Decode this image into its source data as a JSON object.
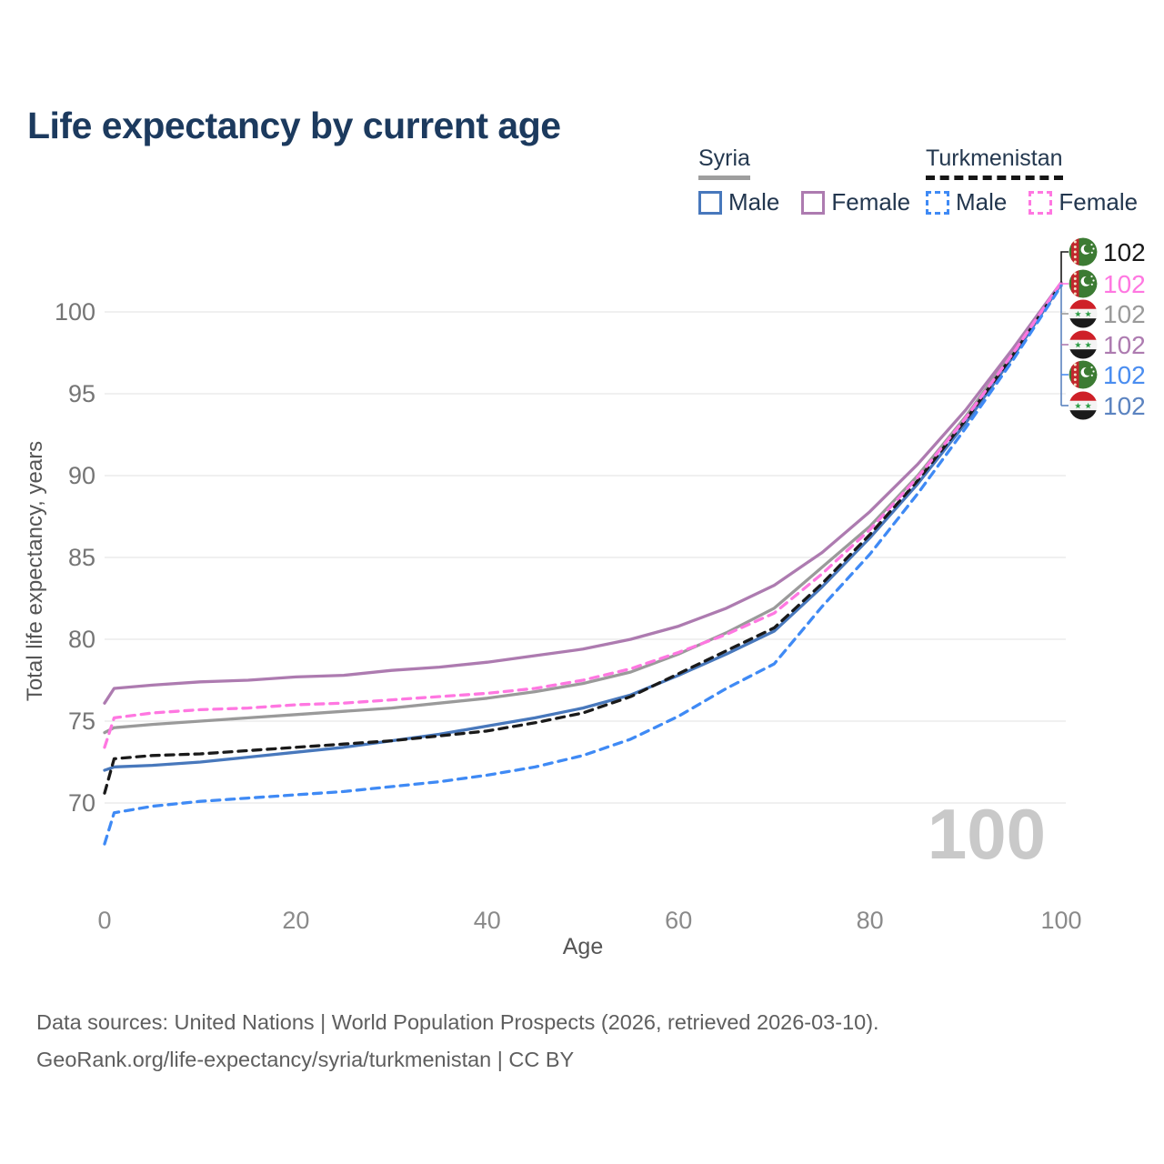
{
  "title": "Life expectancy by current age",
  "legend": {
    "groups": [
      {
        "label": "Syria",
        "line_color": "#9e9e9e",
        "line_style": "solid",
        "items": [
          {
            "label": "Male",
            "color": "#4878bc"
          },
          {
            "label": "Female",
            "color": "#ad7bb0"
          }
        ]
      },
      {
        "label": "Turkmenistan",
        "line_color": "#161616",
        "line_style": "dashed",
        "items": [
          {
            "label": "Male",
            "color": "#3f8af5"
          },
          {
            "label": "Female",
            "color": "#ff77e1"
          }
        ]
      }
    ]
  },
  "chart_data": {
    "type": "line",
    "title": "Life expectancy by current age",
    "xlabel": "Age",
    "ylabel": "Total life expectancy, years",
    "xlim": [
      0,
      100
    ],
    "ylim": [
      66.5,
      102.5
    ],
    "x_ticks": [
      0,
      20,
      40,
      60,
      80,
      100
    ],
    "y_ticks": [
      70,
      75,
      80,
      85,
      90,
      95,
      100
    ],
    "grid": "horizontal",
    "x": [
      0,
      1,
      5,
      10,
      15,
      20,
      25,
      30,
      35,
      40,
      45,
      50,
      55,
      60,
      65,
      70,
      75,
      80,
      85,
      90,
      95,
      100
    ],
    "series": [
      {
        "name": "Syria Total",
        "country": "syria",
        "sex": "total",
        "color": "#9a9a9a",
        "dash": false,
        "values": [
          74.3,
          74.6,
          74.8,
          75.0,
          75.2,
          75.4,
          75.6,
          75.8,
          76.1,
          76.4,
          76.8,
          77.3,
          78.0,
          79.1,
          80.4,
          81.9,
          84.4,
          86.9,
          90.0,
          93.6,
          97.6,
          101.7
        ]
      },
      {
        "name": "Syria Female",
        "country": "syria",
        "sex": "female",
        "color": "#ad7bb0",
        "dash": false,
        "values": [
          76.1,
          77.0,
          77.2,
          77.4,
          77.5,
          77.7,
          77.8,
          78.1,
          78.3,
          78.6,
          79.0,
          79.4,
          80.0,
          80.8,
          81.9,
          83.3,
          85.3,
          87.8,
          90.7,
          94.0,
          97.8,
          101.8
        ]
      },
      {
        "name": "Syria Male",
        "country": "syria",
        "sex": "male",
        "color": "#4878bc",
        "dash": false,
        "values": [
          72.0,
          72.2,
          72.3,
          72.5,
          72.8,
          73.1,
          73.4,
          73.8,
          74.2,
          74.7,
          75.2,
          75.8,
          76.6,
          77.8,
          79.1,
          80.5,
          83.2,
          86.2,
          89.5,
          93.2,
          97.3,
          101.7
        ]
      },
      {
        "name": "Turkmenistan Total",
        "country": "turkmenistan",
        "sex": "total",
        "color": "#1a1a1a",
        "dash": true,
        "values": [
          70.6,
          72.7,
          72.9,
          73.0,
          73.2,
          73.4,
          73.6,
          73.8,
          74.1,
          74.4,
          74.9,
          75.5,
          76.5,
          77.9,
          79.3,
          80.7,
          83.4,
          86.4,
          89.7,
          93.4,
          97.4,
          101.7
        ]
      },
      {
        "name": "Turkmenistan Female",
        "country": "turkmenistan",
        "sex": "female",
        "color": "#ff77e1",
        "dash": true,
        "values": [
          73.4,
          75.2,
          75.5,
          75.7,
          75.8,
          76.0,
          76.1,
          76.3,
          76.5,
          76.7,
          77.0,
          77.5,
          78.2,
          79.2,
          80.3,
          81.6,
          84.0,
          86.7,
          89.9,
          93.5,
          97.5,
          101.8
        ]
      },
      {
        "name": "Turkmenistan Male",
        "country": "turkmenistan",
        "sex": "male",
        "color": "#3f8af5",
        "dash": true,
        "values": [
          67.5,
          69.4,
          69.8,
          70.1,
          70.3,
          70.5,
          70.7,
          71.0,
          71.3,
          71.7,
          72.2,
          72.9,
          73.9,
          75.3,
          77.0,
          78.5,
          82.0,
          85.2,
          88.9,
          92.9,
          97.1,
          101.6
        ]
      }
    ],
    "end_labels": [
      {
        "series": "Turkmenistan Total",
        "country": "turkmenistan",
        "value": "102",
        "color": "#1a1a1a"
      },
      {
        "series": "Turkmenistan Female",
        "country": "turkmenistan",
        "value": "102",
        "color": "#ff77e1"
      },
      {
        "series": "Syria Total",
        "country": "syria",
        "value": "102",
        "color": "#9a9a9a"
      },
      {
        "series": "Syria Female",
        "country": "syria",
        "value": "102",
        "color": "#ad7bb0"
      },
      {
        "series": "Turkmenistan Male",
        "country": "turkmenistan",
        "value": "102",
        "color": "#4a8df0"
      },
      {
        "series": "Syria Male",
        "country": "syria",
        "value": "102",
        "color": "#5b83c0"
      }
    ],
    "age_counter": "100",
    "legend_position": "top-right"
  },
  "footer": {
    "line1": "Data sources: United Nations | World Population Prospects (2026, retrieved 2026-03-10).",
    "line2": "GeoRank.org/life-expectancy/syria/turkmenistan | CC BY"
  }
}
